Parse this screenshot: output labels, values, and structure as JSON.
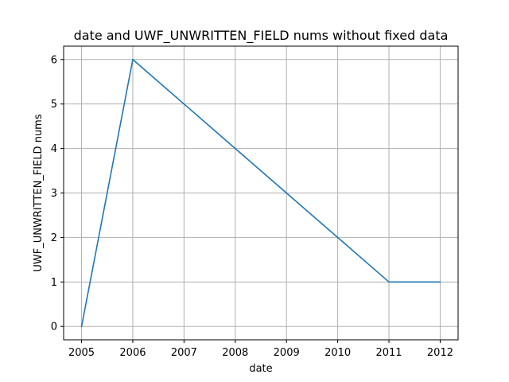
{
  "chart_data": {
    "type": "line",
    "title": "date and UWF_UNWRITTEN_FIELD nums without fixed data",
    "xlabel": "date",
    "ylabel": "UWF_UNWRITTEN_FIELD nums",
    "x": [
      2005,
      2006,
      2007,
      2008,
      2009,
      2010,
      2011,
      2012
    ],
    "x_tick_labels": [
      "2005",
      "2006",
      "2007",
      "2008",
      "2009",
      "2010",
      "2011",
      "2012"
    ],
    "y_ticks": [
      0,
      1,
      2,
      3,
      4,
      5,
      6
    ],
    "y_tick_labels": [
      "0",
      "1",
      "2",
      "3",
      "4",
      "5",
      "6"
    ],
    "xlim": [
      2004.65,
      2012.35
    ],
    "ylim": [
      -0.3,
      6.3
    ],
    "grid": true,
    "series": [
      {
        "x": [
          2005,
          2006,
          2007,
          2008,
          2009,
          2010,
          2011,
          2012
        ],
        "values": [
          0,
          6,
          5,
          4,
          3,
          2,
          1,
          1
        ],
        "color": "#1f77b4"
      }
    ]
  }
}
